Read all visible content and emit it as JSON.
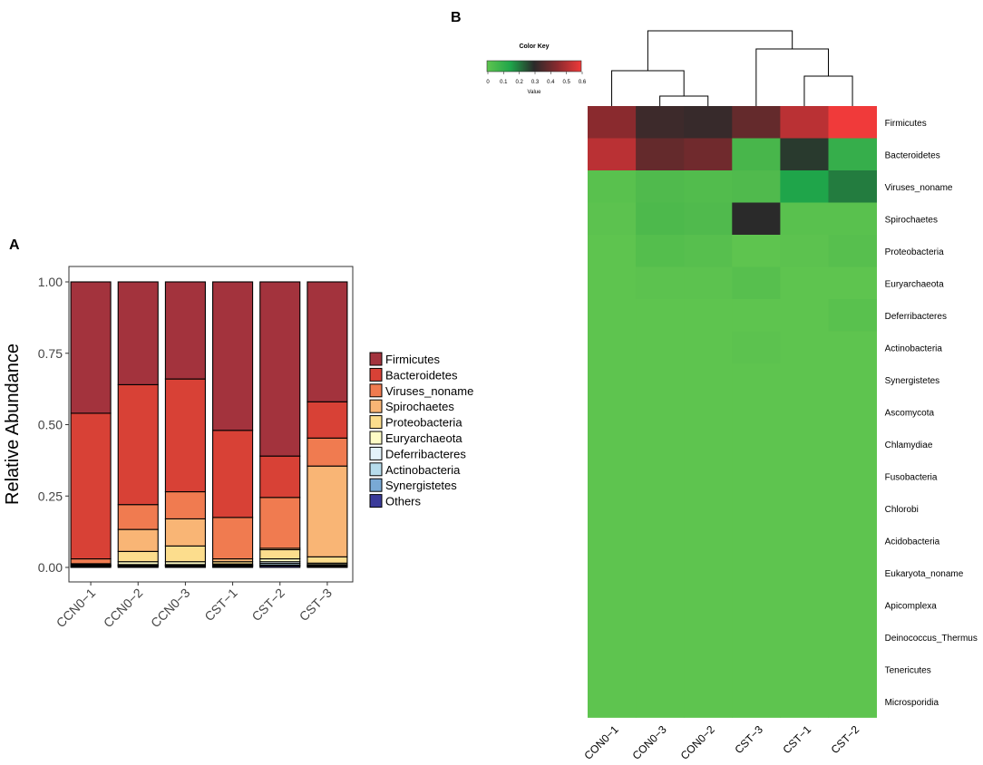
{
  "panel_labels": {
    "a": "A",
    "b": "B"
  },
  "colors": {
    "Firmicutes": "#A3333D",
    "Bacteroidetes": "#D84136",
    "Viruses_noname": "#F07B50",
    "Spirochaetes": "#F9B575",
    "Proteobacteria": "#FCDD8D",
    "Euryarchaeota": "#FEFBC5",
    "Deferribacteres": "#E3F2FA",
    "Actinobacteria": "#B7DCEC",
    "Synergistetes": "#79A9D5",
    "Others": "#3B3B9A"
  },
  "chart_data": [
    {
      "type": "bar",
      "stacked": true,
      "title": "",
      "xlabel": "",
      "ylabel": "Relative Abundance",
      "ylim": [
        0,
        1
      ],
      "yticks": [
        "0.00",
        "0.25",
        "0.50",
        "0.75",
        "1.00"
      ],
      "categories": [
        "CCN0−1",
        "CCN0−2",
        "CCN0−3",
        "CST−1",
        "CST−2",
        "CST−3"
      ],
      "series": [
        {
          "name": "Others",
          "values": [
            0.003,
            0.004,
            0.004,
            0.003,
            0.005,
            0.003
          ]
        },
        {
          "name": "Synergistetes",
          "values": [
            0.002,
            0.002,
            0.002,
            0.002,
            0.003,
            0.002
          ]
        },
        {
          "name": "Actinobacteria",
          "values": [
            0.001,
            0.002,
            0.002,
            0.002,
            0.006,
            0.002
          ]
        },
        {
          "name": "Deferribacteres",
          "values": [
            0.001,
            0.002,
            0.002,
            0.002,
            0.006,
            0.003
          ]
        },
        {
          "name": "Euryarchaeota",
          "values": [
            0.001,
            0.01,
            0.01,
            0.003,
            0.01,
            0.005
          ]
        },
        {
          "name": "Proteobacteria",
          "values": [
            0.002,
            0.036,
            0.055,
            0.008,
            0.032,
            0.022
          ]
        },
        {
          "name": "Spirochaetes",
          "values": [
            0.003,
            0.077,
            0.095,
            0.01,
            0.005,
            0.318
          ]
        },
        {
          "name": "Viruses_noname",
          "values": [
            0.017,
            0.087,
            0.095,
            0.145,
            0.178,
            0.098
          ]
        },
        {
          "name": "Bacteroidetes",
          "values": [
            0.51,
            0.42,
            0.395,
            0.305,
            0.145,
            0.127
          ]
        },
        {
          "name": "Firmicutes",
          "values": [
            0.46,
            0.36,
            0.34,
            0.52,
            0.61,
            0.42
          ]
        }
      ],
      "legend_order": [
        "Firmicutes",
        "Bacteroidetes",
        "Viruses_noname",
        "Spirochaetes",
        "Proteobacteria",
        "Euryarchaeota",
        "Deferribacteres",
        "Actinobacteria",
        "Synergistetes",
        "Others"
      ],
      "legend_position": "right"
    },
    {
      "type": "heatmap",
      "title": "Color Key",
      "color_key_ticks": [
        "0",
        "0.1",
        "0.2",
        "0.3",
        "0.4",
        "0.5",
        "0.6"
      ],
      "color_key_label": "Value",
      "value_range": [
        0,
        0.6
      ],
      "columns": [
        "CON0−1",
        "CON0−3",
        "CON0−2",
        "CST−3",
        "CST−1",
        "CST−2"
      ],
      "rows": [
        "Firmicutes",
        "Bacteroidetes",
        "Viruses_noname",
        "Spirochaetes",
        "Proteobacteria",
        "Euryarchaeota",
        "Deferribacteres",
        "Actinobacteria",
        "Synergistetes",
        "Ascomycota",
        "Chlamydiae",
        "Fusobacteria",
        "Chlorobi",
        "Acidobacteria",
        "Eukaryota_noname",
        "Apicomplexa",
        "Deinococcus_Thermus",
        "Tenericutes",
        "Microsporidia"
      ],
      "values": [
        [
          0.45,
          0.33,
          0.32,
          0.39,
          0.52,
          0.6
        ],
        [
          0.52,
          0.39,
          0.41,
          0.09,
          0.28,
          0.12
        ],
        [
          0.02,
          0.06,
          0.05,
          0.06,
          0.15,
          0.2
        ],
        [
          0.01,
          0.07,
          0.06,
          0.3,
          0.02,
          0.02
        ],
        [
          0.0,
          0.04,
          0.03,
          0.0,
          0.01,
          0.03
        ],
        [
          0.0,
          0.01,
          0.01,
          0.03,
          0.0,
          0.0
        ],
        [
          0.0,
          0.0,
          0.0,
          0.0,
          0.0,
          0.02
        ],
        [
          0.0,
          0.0,
          0.0,
          0.01,
          0.0,
          0.0
        ],
        [
          0.0,
          0.0,
          0.0,
          0.0,
          0.0,
          0.0
        ],
        [
          0.0,
          0.0,
          0.0,
          0.0,
          0.0,
          0.0
        ],
        [
          0.0,
          0.0,
          0.0,
          0.0,
          0.0,
          0.0
        ],
        [
          0.0,
          0.0,
          0.0,
          0.0,
          0.0,
          0.0
        ],
        [
          0.0,
          0.0,
          0.0,
          0.0,
          0.0,
          0.0
        ],
        [
          0.0,
          0.0,
          0.0,
          0.0,
          0.0,
          0.0
        ],
        [
          0.0,
          0.0,
          0.0,
          0.0,
          0.0,
          0.0
        ],
        [
          0.0,
          0.0,
          0.0,
          0.0,
          0.0,
          0.0
        ],
        [
          0.0,
          0.0,
          0.0,
          0.0,
          0.0,
          0.0
        ],
        [
          0.0,
          0.0,
          0.0,
          0.0,
          0.0,
          0.0
        ],
        [
          0.0,
          0.0,
          0.0,
          0.0,
          0.0,
          0.0
        ]
      ],
      "dendrogram": "((CON0−1,(CON0−3,CON0−2)),(CST−3,(CST−1,CST−2)))"
    }
  ]
}
